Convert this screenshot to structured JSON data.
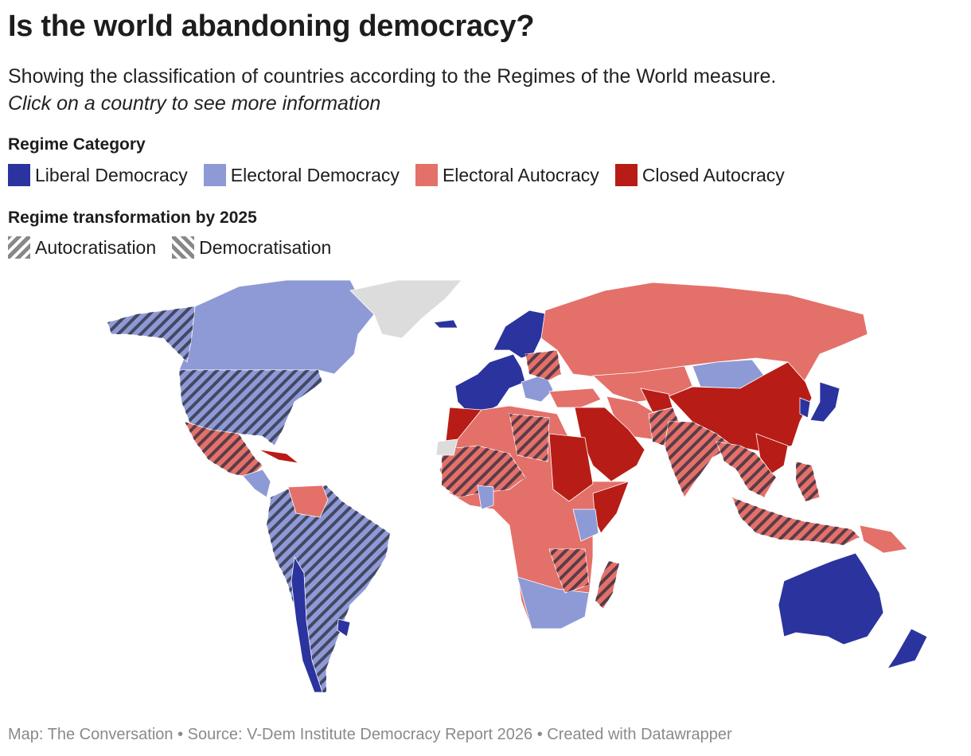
{
  "title": "Is the world abandoning democracy?",
  "subtitle": "Showing the classification of countries according to the Regimes of the World measure.",
  "instruction": "Click on a country to see more information",
  "legend_category": {
    "heading": "Regime Category",
    "items": [
      {
        "key": "liberal",
        "label": "Liberal Democracy",
        "color": "#2b339f"
      },
      {
        "key": "electoral_dem",
        "label": "Electoral Democracy",
        "color": "#8e9ad6"
      },
      {
        "key": "electoral_aut",
        "label": "Electoral Autocracy",
        "color": "#e4706a"
      },
      {
        "key": "closed",
        "label": "Closed Autocracy",
        "color": "#b71d16"
      }
    ]
  },
  "legend_transformation": {
    "heading": "Regime transformation by 2025",
    "items": [
      {
        "key": "autocratisation",
        "label": "Autocratisation"
      },
      {
        "key": "democratisation",
        "label": "Democratisation"
      }
    ]
  },
  "no_data_color": "#dcdcdc",
  "map": {
    "regions": [
      {
        "id": "canada",
        "category": "electoral_dem"
      },
      {
        "id": "alaska",
        "category": "electoral_dem",
        "transformation": "autocratisation"
      },
      {
        "id": "usa",
        "category": "electoral_dem",
        "transformation": "autocratisation"
      },
      {
        "id": "greenland",
        "category": "none"
      },
      {
        "id": "mexico",
        "category": "electoral_aut",
        "transformation": "autocratisation"
      },
      {
        "id": "central-america",
        "category": "electoral_dem"
      },
      {
        "id": "cuba",
        "category": "closed"
      },
      {
        "id": "south-america",
        "category": "electoral_dem",
        "transformation": "autocratisation"
      },
      {
        "id": "venezuela",
        "category": "electoral_aut"
      },
      {
        "id": "chile",
        "category": "liberal"
      },
      {
        "id": "uruguay",
        "category": "liberal"
      },
      {
        "id": "iceland",
        "category": "liberal"
      },
      {
        "id": "europe-west",
        "category": "liberal"
      },
      {
        "id": "scandinavia",
        "category": "liberal"
      },
      {
        "id": "balkans",
        "category": "electoral_dem"
      },
      {
        "id": "russia",
        "category": "electoral_aut"
      },
      {
        "id": "belarus",
        "category": "electoral_aut",
        "transformation": "autocratisation"
      },
      {
        "id": "central-asia",
        "category": "electoral_aut"
      },
      {
        "id": "mongolia",
        "category": "electoral_dem"
      },
      {
        "id": "china",
        "category": "closed"
      },
      {
        "id": "turkey",
        "category": "electoral_aut"
      },
      {
        "id": "iran",
        "category": "electoral_aut"
      },
      {
        "id": "arabia",
        "category": "closed"
      },
      {
        "id": "afghanistan",
        "category": "closed"
      },
      {
        "id": "pakistan",
        "category": "electoral_aut",
        "transformation": "autocratisation"
      },
      {
        "id": "india",
        "category": "electoral_aut",
        "transformation": "autocratisation"
      },
      {
        "id": "indochina",
        "category": "electoral_aut",
        "transformation": "autocratisation"
      },
      {
        "id": "vietnam",
        "category": "closed"
      },
      {
        "id": "japan",
        "category": "liberal"
      },
      {
        "id": "korea",
        "category": "liberal"
      },
      {
        "id": "philippines",
        "category": "electoral_aut",
        "transformation": "autocratisation"
      },
      {
        "id": "indonesia",
        "category": "electoral_aut",
        "transformation": "autocratisation"
      },
      {
        "id": "png",
        "category": "electoral_aut"
      },
      {
        "id": "australia",
        "category": "liberal"
      },
      {
        "id": "new-zealand",
        "category": "liberal"
      },
      {
        "id": "morocco",
        "category": "closed"
      },
      {
        "id": "africa",
        "category": "electoral_aut"
      },
      {
        "id": "sahel",
        "category": "electoral_aut",
        "transformation": "autocratisation"
      },
      {
        "id": "libya",
        "category": "electoral_aut",
        "transformation": "autocratisation"
      },
      {
        "id": "sudan",
        "category": "closed"
      },
      {
        "id": "somalia",
        "category": "closed"
      },
      {
        "id": "ghana",
        "category": "electoral_dem"
      },
      {
        "id": "kenya",
        "category": "electoral_dem"
      },
      {
        "id": "southern-africa",
        "category": "electoral_dem"
      },
      {
        "id": "mozambique",
        "category": "electoral_aut",
        "transformation": "autocratisation"
      },
      {
        "id": "madagascar",
        "category": "electoral_aut",
        "transformation": "autocratisation"
      },
      {
        "id": "western-sahara",
        "category": "none"
      }
    ]
  },
  "footer": "Map: The Conversation • Source: V-Dem Institute Democracy Report 2026 • Created with Datawrapper"
}
